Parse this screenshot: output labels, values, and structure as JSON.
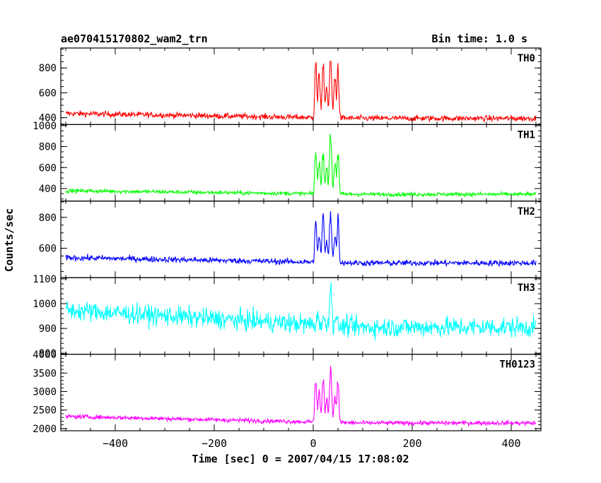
{
  "header": {
    "title": "ae070415170802_wam2_trn",
    "bin_time": "Bin time: 1.0 s"
  },
  "axes": {
    "xlabel": "Time [sec] 0 = 2007/04/15 17:08:02",
    "ylabel": "Counts/sec"
  },
  "chart_data": {
    "type": "line",
    "x_range": [
      -510,
      460
    ],
    "x_ticks": [
      -400,
      -200,
      0,
      200,
      400
    ],
    "x_tick_labels": [
      "−400",
      "−200",
      "0",
      "200",
      "400"
    ],
    "x_minor_step": 50,
    "series": [
      {
        "name": "TH0",
        "color": "#ff0000",
        "ylim": [
          345,
          960
        ],
        "y_ticks": [
          400,
          600,
          800
        ],
        "y_tick_labels": [
          "400",
          "600",
          "800"
        ],
        "y_minor_step": 50,
        "profile": {
          "start": 435,
          "end": 395,
          "noise": 22,
          "burst": [
            [
              5,
              880
            ],
            [
              12,
              790
            ],
            [
              20,
              860
            ],
            [
              27,
              700
            ],
            [
              35,
              940
            ],
            [
              44,
              760
            ],
            [
              50,
              840
            ]
          ]
        }
      },
      {
        "name": "TH1",
        "color": "#00ff00",
        "ylim": [
          280,
          1010
        ],
        "y_ticks": [
          400,
          600,
          800,
          1000
        ],
        "y_tick_labels": [
          "400",
          "600",
          "800",
          "1000"
        ],
        "y_minor_step": 50,
        "profile": {
          "start": 380,
          "end": 345,
          "noise": 18,
          "burst": [
            [
              5,
              820
            ],
            [
              12,
              700
            ],
            [
              20,
              770
            ],
            [
              27,
              640
            ],
            [
              35,
              1000
            ],
            [
              44,
              720
            ],
            [
              50,
              780
            ]
          ]
        }
      },
      {
        "name": "TH2",
        "color": "#0000ff",
        "ylim": [
          410,
          905
        ],
        "y_ticks": [
          600,
          800
        ],
        "y_tick_labels": [
          "600",
          "800"
        ],
        "y_minor_step": 50,
        "profile": {
          "start": 540,
          "end": 505,
          "noise": 18,
          "burst": [
            [
              5,
              800
            ],
            [
              12,
              700
            ],
            [
              20,
              840
            ],
            [
              27,
              660
            ],
            [
              35,
              880
            ],
            [
              44,
              700
            ],
            [
              50,
              820
            ]
          ]
        }
      },
      {
        "name": "TH3",
        "color": "#00ffff",
        "ylim": [
          796,
          1105
        ],
        "y_ticks": [
          800,
          900,
          1000,
          1100
        ],
        "y_tick_labels": [
          "800",
          "900",
          "1000",
          "1100"
        ],
        "y_minor_step": 20,
        "profile": {
          "start": 975,
          "end": 905,
          "noise": 38,
          "burst": [
            [
              10,
              960
            ],
            [
              20,
              950
            ],
            [
              35,
              1100
            ],
            [
              45,
              960
            ]
          ]
        }
      },
      {
        "name": "TH0123",
        "color": "#ff00ff",
        "ylim": [
          1940,
          4010
        ],
        "y_ticks": [
          2000,
          2500,
          3000,
          3500,
          4000
        ],
        "y_tick_labels": [
          "2000",
          "2500",
          "3000",
          "3500",
          "4000"
        ],
        "y_minor_step": 100,
        "profile": {
          "start": 2330,
          "end": 2150,
          "noise": 55,
          "burst": [
            [
              5,
              3500
            ],
            [
              12,
              3100
            ],
            [
              20,
              3450
            ],
            [
              27,
              2900
            ],
            [
              35,
              3950
            ],
            [
              44,
              3000
            ],
            [
              50,
              3400
            ]
          ]
        }
      }
    ]
  }
}
